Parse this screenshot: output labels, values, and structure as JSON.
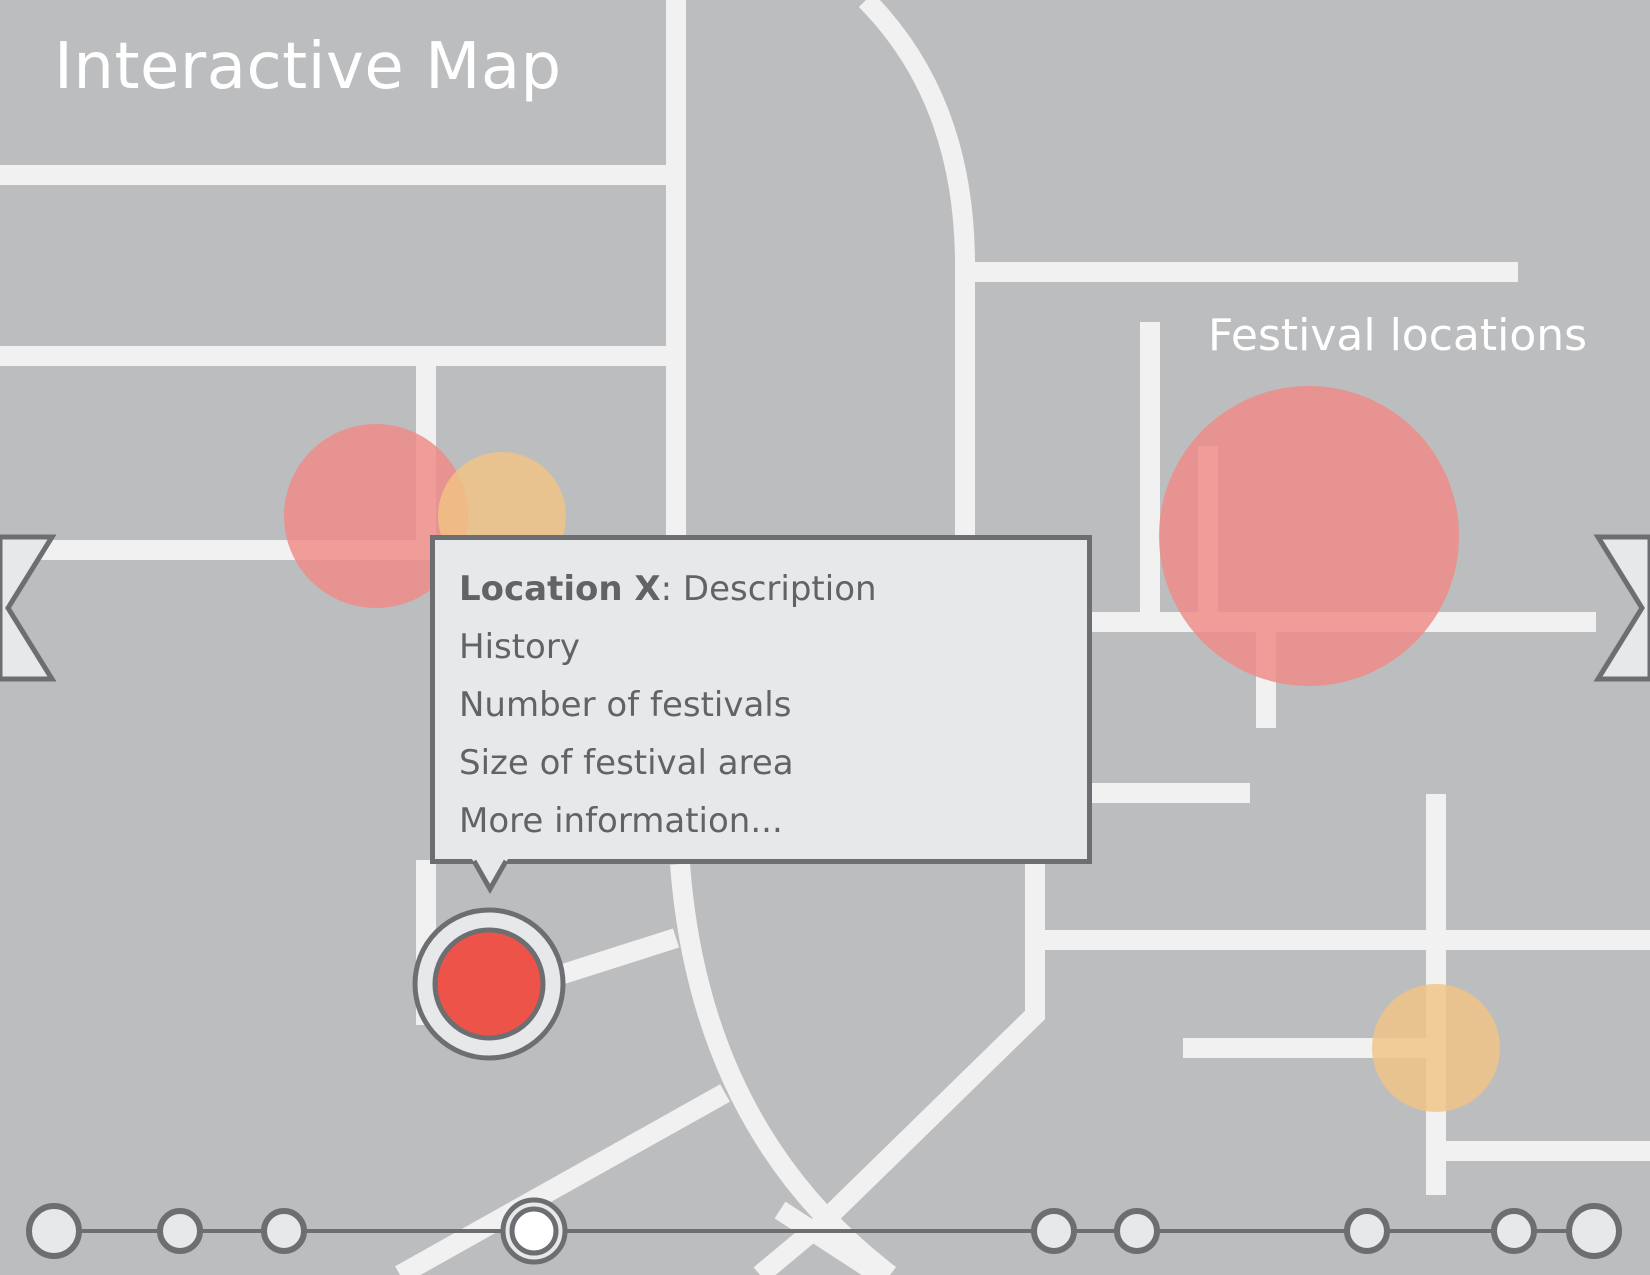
{
  "header": {
    "title": "Interactive Map"
  },
  "legend": {
    "label": "Festival locations"
  },
  "popup": {
    "title_bold": "Location X",
    "title_rest": ": Description",
    "lines": [
      "History",
      "Number of festivals",
      "Size of festival area"
    ],
    "more_link": "More information..."
  },
  "colors": {
    "background": "#bcbdbf",
    "road": "#f1f1f1",
    "festival_red": "#ef8a86",
    "festival_orange": "#f2c384",
    "selected_marker": "#ee5349",
    "outline": "#6d6e71",
    "panel": "#e7e8ea"
  },
  "icons": {
    "left": "chevron-left-icon",
    "right": "chevron-right-icon",
    "marker": "map-pin-icon"
  },
  "timeline": {
    "stops": 10,
    "selected_index": 3
  }
}
